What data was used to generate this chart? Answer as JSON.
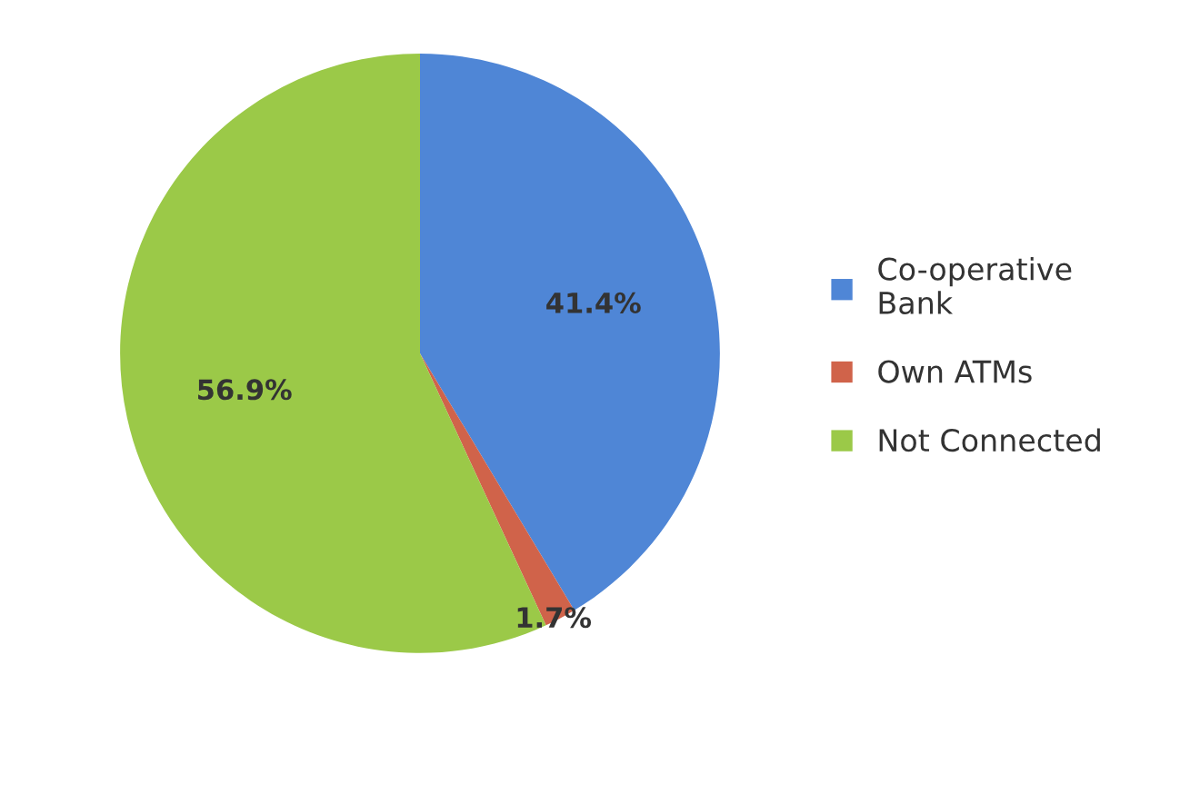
{
  "chart_data": {
    "type": "pie",
    "categories": [
      "Co-operative Bank",
      "Own ATMs",
      "Not Connected"
    ],
    "values": [
      41.4,
      1.7,
      56.9
    ],
    "colors": [
      "#4f86d6",
      "#d0634a",
      "#9bc948"
    ],
    "value_labels": [
      "41.4%",
      "1.7%",
      "56.9%"
    ],
    "legend": "right"
  }
}
